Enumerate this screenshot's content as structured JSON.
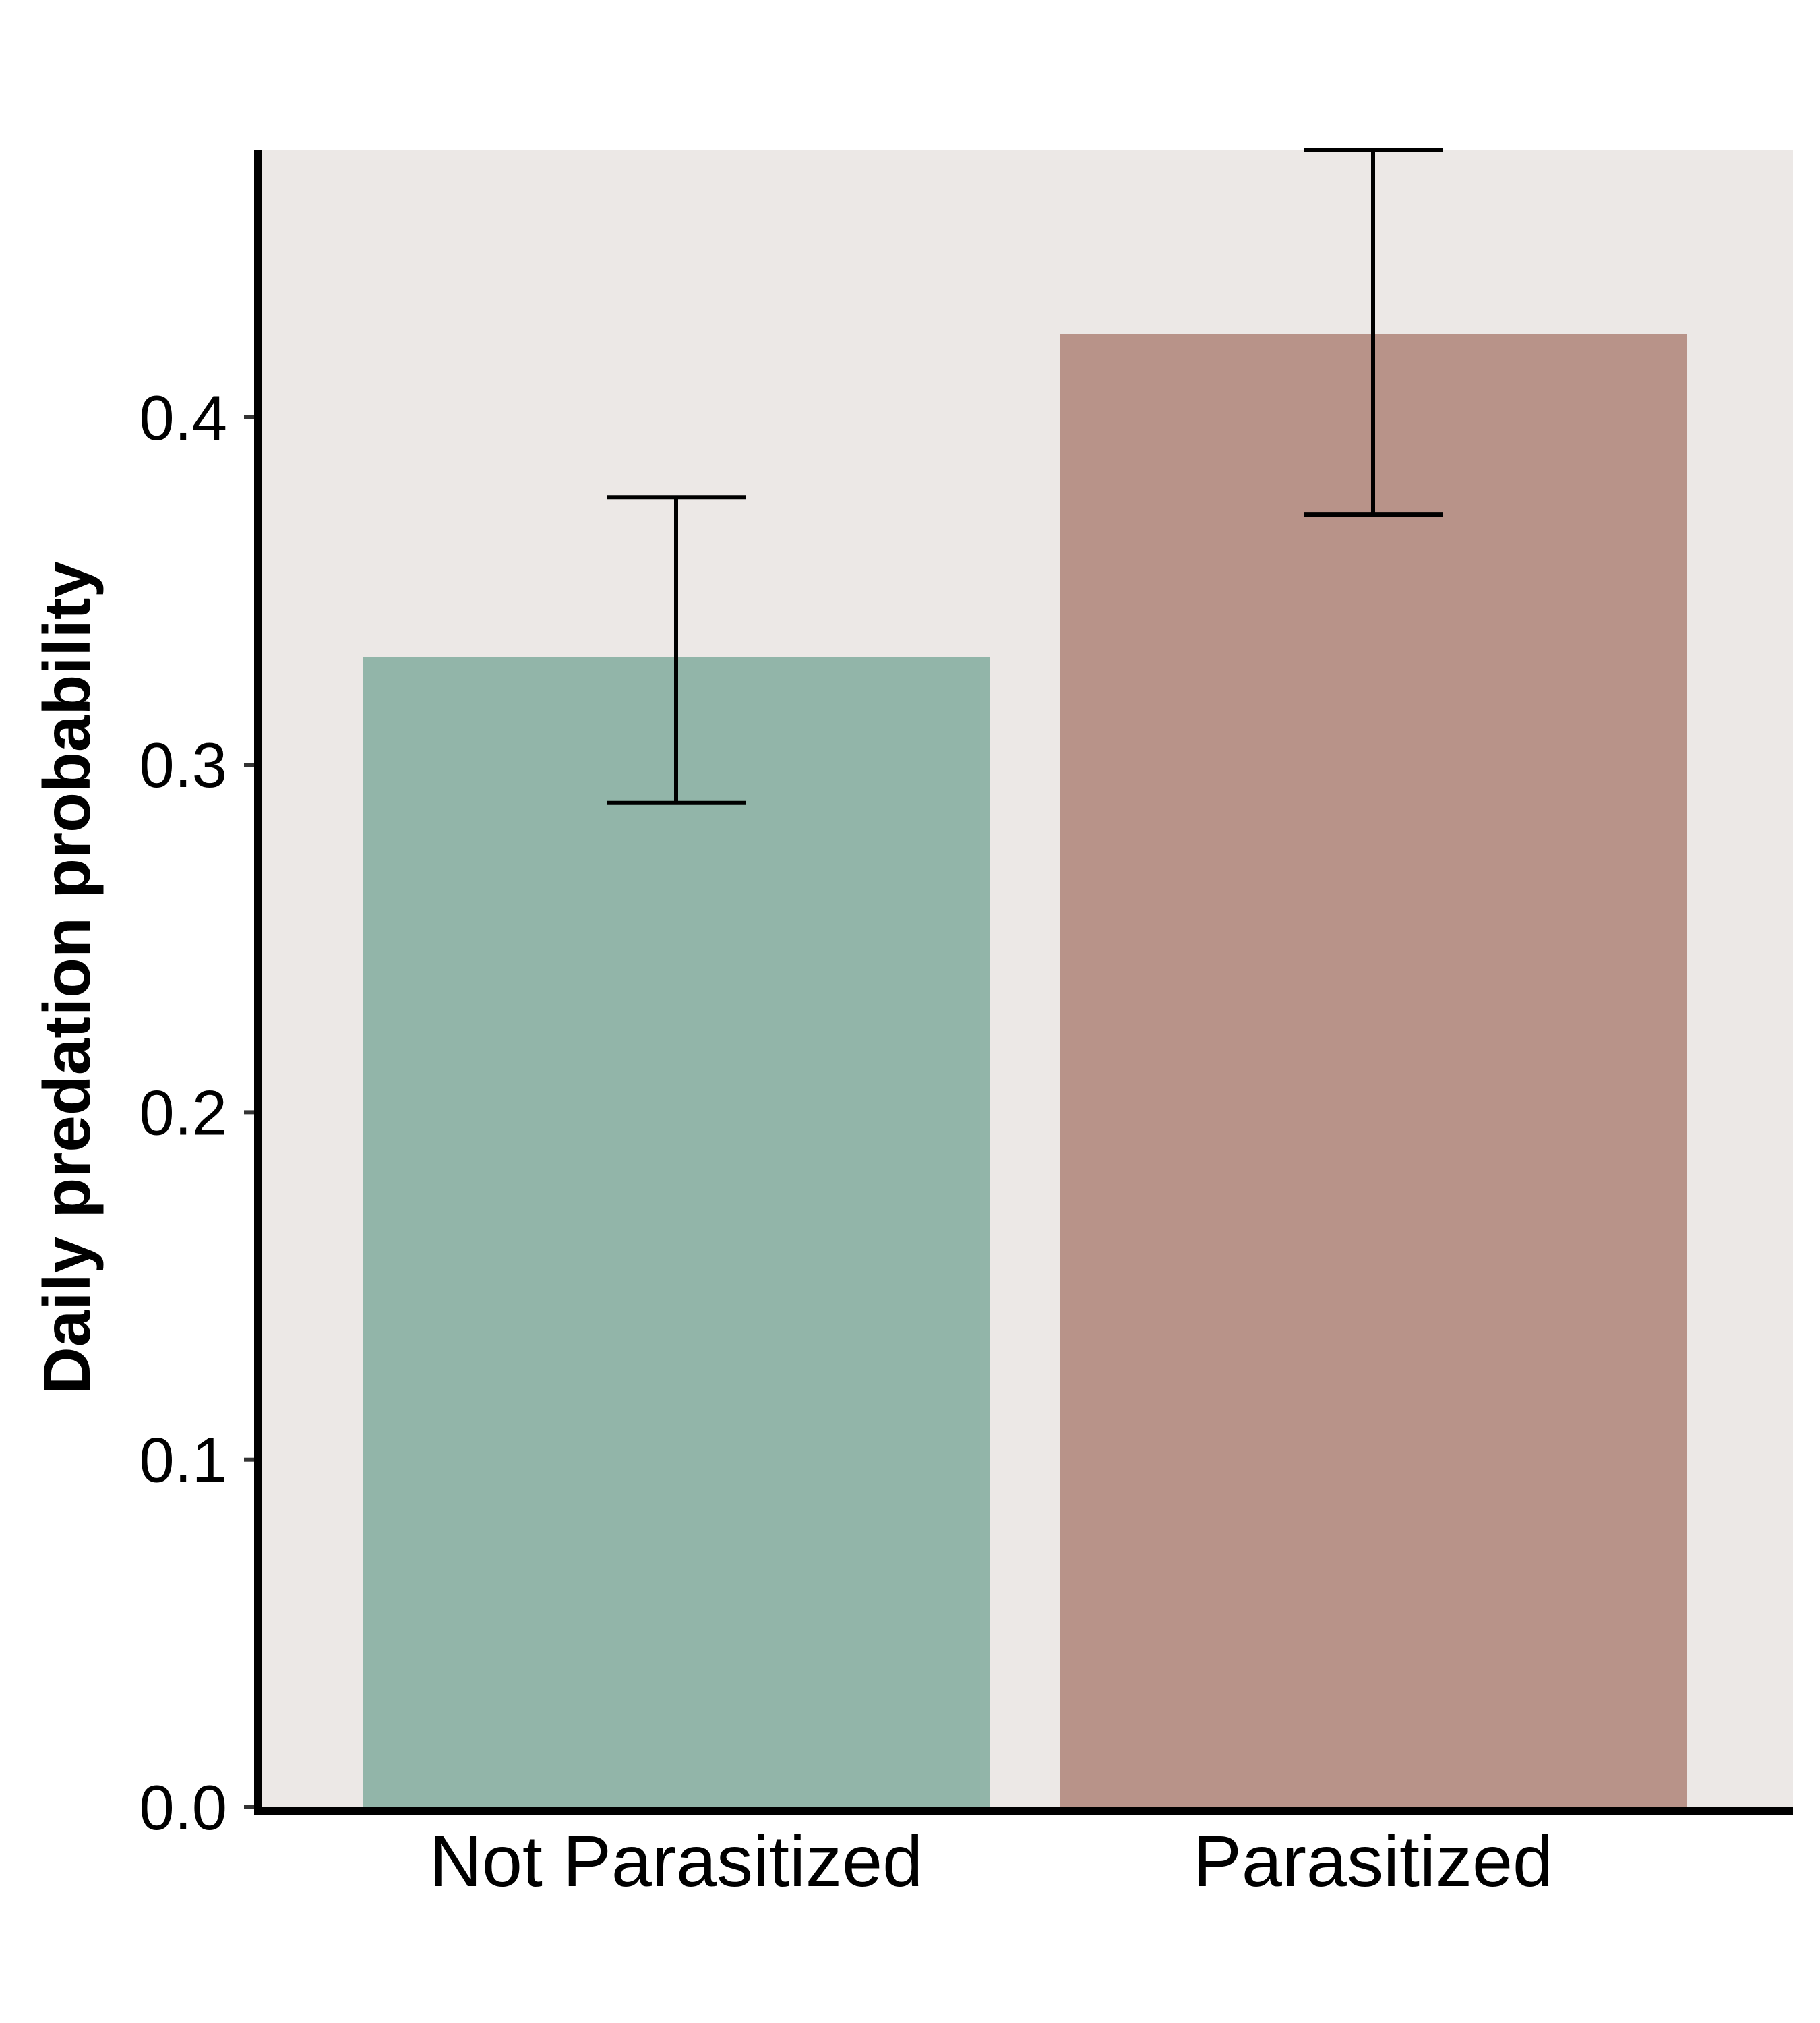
{
  "chart_data": {
    "type": "bar",
    "title": "",
    "xlabel": "",
    "ylabel": "Daily predation probability",
    "categories": [
      "Not Parasitized",
      "Parasitized"
    ],
    "values": [
      0.331,
      0.424
    ],
    "error_low": [
      0.289,
      0.372
    ],
    "error_high": [
      0.377,
      0.477
    ],
    "ylim": [
      0,
      0.477
    ],
    "yticks": [
      0.0,
      0.1,
      0.2,
      0.3,
      0.4
    ],
    "ytick_labels": [
      "0.0",
      "0.1",
      "0.2",
      "0.3",
      "0.4"
    ],
    "grid": false,
    "legend": "none",
    "colors": {
      "panel_background": "#ece8e6",
      "bars": [
        "#92b5a9",
        "#b89389"
      ],
      "axis": "#000000",
      "error_bars": "#000000"
    }
  }
}
